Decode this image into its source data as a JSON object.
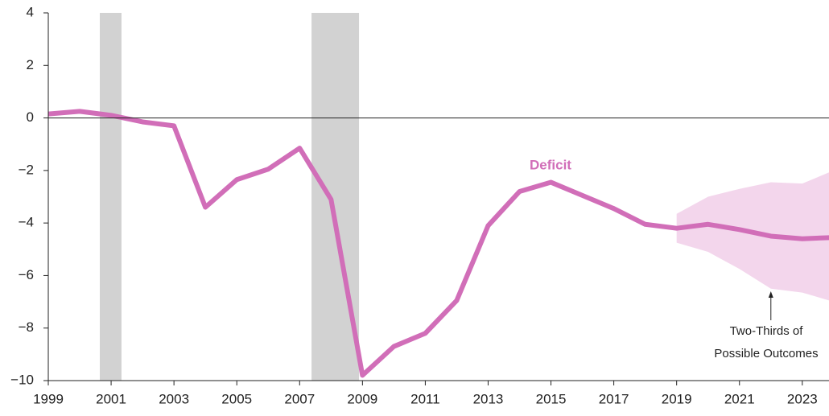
{
  "chart_data": {
    "type": "line",
    "x": [
      1999,
      2000,
      2001,
      2002,
      2003,
      2004,
      2005,
      2006,
      2007,
      2008,
      2009,
      2010,
      2011,
      2012,
      2013,
      2014,
      2015,
      2016,
      2017,
      2018,
      2019,
      2020,
      2021,
      2022,
      2023,
      2024
    ],
    "series": [
      {
        "name": "Deficit",
        "color": "#d16eb8",
        "values": [
          0.15,
          0.25,
          0.1,
          -0.15,
          -0.3,
          -3.4,
          -2.35,
          -1.95,
          -1.15,
          -3.1,
          -9.8,
          -8.7,
          -8.2,
          -6.95,
          -4.1,
          -2.8,
          -2.45,
          -2.95,
          -3.45,
          -4.05,
          -4.2,
          -4.05,
          -4.25,
          -4.5,
          -4.6,
          -4.55
        ]
      }
    ],
    "band": {
      "name": [
        "Two-Thirds of",
        "Possible Outcomes"
      ],
      "color": "#f3d6ec",
      "x": [
        2019,
        2020,
        2021,
        2022,
        2023,
        2024
      ],
      "upper": [
        -3.65,
        -3.0,
        -2.7,
        -2.45,
        -2.5,
        -2.0
      ],
      "lower": [
        -4.75,
        -5.1,
        -5.75,
        -6.5,
        -6.65,
        -7.0
      ],
      "arrow_x": 2022
    },
    "shaded_periods": [
      [
        2000.64,
        2001.33
      ],
      [
        2007.38,
        2008.89
      ]
    ],
    "shade_color": "#d2d2d2",
    "xlim": [
      1999,
      2023.85
    ],
    "ylim": [
      -10,
      4
    ],
    "xticks": [
      1999,
      2001,
      2003,
      2005,
      2007,
      2009,
      2011,
      2013,
      2015,
      2017,
      2019,
      2021,
      2023
    ],
    "yticks": [
      4,
      2,
      0,
      {
        "value": -2,
        "label": "−2"
      },
      {
        "value": -4,
        "label": "−4"
      },
      {
        "value": -6,
        "label": "−6"
      },
      {
        "value": -8,
        "label": "−8"
      },
      {
        "value": -10,
        "label": "−10"
      }
    ]
  }
}
